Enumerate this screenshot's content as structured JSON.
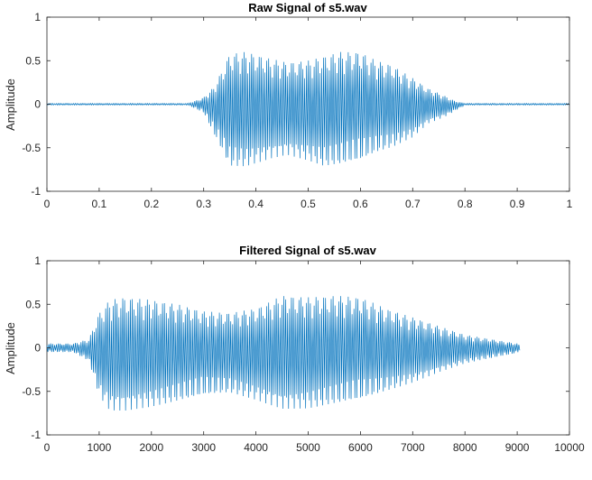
{
  "chart_data": [
    {
      "type": "line",
      "title": "Raw Signal of s5.wav",
      "xlabel": "",
      "ylabel": "Amplitude",
      "xlim": [
        0,
        1
      ],
      "ylim": [
        -1,
        1
      ],
      "xticks": [
        "0",
        "0.1",
        "0.2",
        "0.3",
        "0.4",
        "0.5",
        "0.6",
        "0.7",
        "0.8",
        "0.9",
        "1"
      ],
      "yticks": [
        "1",
        "0.5",
        "0",
        "-0.5",
        "-1"
      ],
      "xtick_values": [
        0,
        0.1,
        0.2,
        0.3,
        0.4,
        0.5,
        0.6,
        0.7,
        0.8,
        0.9,
        1
      ],
      "ytick_values": [
        1,
        0.5,
        0,
        -0.5,
        -1
      ],
      "grid": false,
      "color": "#0072BD",
      "series": [
        {
          "envelope_x": [
            0,
            0.27,
            0.28,
            0.3,
            0.32,
            0.35,
            0.38,
            0.4,
            0.43,
            0.46,
            0.5,
            0.53,
            0.56,
            0.6,
            0.63,
            0.66,
            0.7,
            0.73,
            0.76,
            0.78,
            0.8,
            1
          ],
          "envelope_max": [
            0.01,
            0.01,
            0.03,
            0.08,
            0.2,
            0.58,
            0.6,
            0.57,
            0.52,
            0.48,
            0.5,
            0.55,
            0.6,
            0.6,
            0.5,
            0.45,
            0.3,
            0.18,
            0.1,
            0.04,
            0.01,
            0.01
          ],
          "envelope_min": [
            -0.01,
            -0.01,
            -0.04,
            -0.1,
            -0.35,
            -0.72,
            -0.72,
            -0.68,
            -0.62,
            -0.58,
            -0.65,
            -0.72,
            -0.7,
            -0.65,
            -0.56,
            -0.5,
            -0.38,
            -0.22,
            -0.15,
            -0.08,
            -0.01,
            -0.01
          ]
        }
      ]
    },
    {
      "type": "line",
      "title": "Filtered Signal of s5.wav",
      "xlabel": "",
      "ylabel": "Amplitude",
      "xlim": [
        0,
        10000
      ],
      "ylim": [
        -1,
        1
      ],
      "xticks": [
        "0",
        "1000",
        "2000",
        "3000",
        "4000",
        "5000",
        "6000",
        "7000",
        "8000",
        "9000",
        "10000"
      ],
      "yticks": [
        "1",
        "0.5",
        "0",
        "-0.5",
        "-1"
      ],
      "xtick_values": [
        0,
        1000,
        2000,
        3000,
        4000,
        5000,
        6000,
        7000,
        8000,
        9000,
        10000
      ],
      "ytick_values": [
        1,
        0.5,
        0,
        -0.5,
        -1
      ],
      "grid": false,
      "color": "#0072BD",
      "series": [
        {
          "envelope_x": [
            0,
            500,
            800,
            1000,
            1200,
            1500,
            2000,
            2500,
            3000,
            3500,
            4000,
            4500,
            5000,
            5500,
            6000,
            6500,
            7000,
            7500,
            8000,
            8500,
            9000,
            9050
          ],
          "envelope_max": [
            0.05,
            0.05,
            0.1,
            0.4,
            0.55,
            0.58,
            0.55,
            0.5,
            0.42,
            0.4,
            0.45,
            0.6,
            0.58,
            0.6,
            0.58,
            0.45,
            0.35,
            0.25,
            0.15,
            0.1,
            0.05,
            0.03
          ],
          "envelope_min": [
            -0.05,
            -0.05,
            -0.15,
            -0.55,
            -0.72,
            -0.72,
            -0.68,
            -0.62,
            -0.55,
            -0.52,
            -0.6,
            -0.7,
            -0.7,
            -0.65,
            -0.6,
            -0.5,
            -0.4,
            -0.28,
            -0.18,
            -0.12,
            -0.06,
            -0.03
          ]
        }
      ]
    }
  ]
}
